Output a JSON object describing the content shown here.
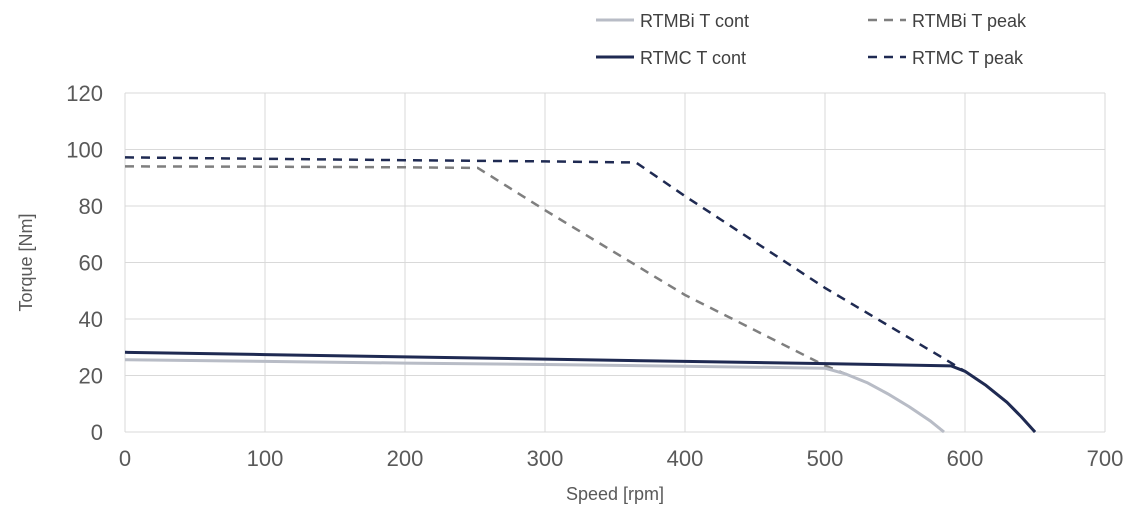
{
  "chart_data": {
    "type": "line",
    "title": "",
    "xlabel": "Speed [rpm]",
    "ylabel": "Torque [Nm]",
    "xlim": [
      0,
      700
    ],
    "ylim": [
      0,
      120
    ],
    "xticks": [
      0,
      100,
      200,
      300,
      400,
      500,
      600,
      700
    ],
    "yticks": [
      0,
      20,
      40,
      60,
      80,
      100,
      120
    ],
    "grid": "both",
    "legend_position": "top-right",
    "series": [
      {
        "name": "RTMBi T cont",
        "color": "#b8bcc6",
        "style": "solid",
        "x": [
          0,
          100,
          200,
          300,
          400,
          500,
          515,
          530,
          545,
          560,
          575,
          585
        ],
        "y": [
          25.6,
          25.0,
          24.4,
          23.9,
          23.3,
          22.6,
          20.5,
          17.5,
          13.5,
          9.0,
          4.0,
          0
        ]
      },
      {
        "name": "RTMBi T peak",
        "color": "#7f7f7f",
        "style": "dashed",
        "x": [
          0,
          100,
          200,
          252,
          300,
          400,
          500,
          515,
          530,
          545,
          560,
          575,
          585
        ],
        "y": [
          94,
          93.9,
          93.7,
          93.5,
          78.5,
          48.5,
          23.5,
          20.5,
          17.5,
          13.5,
          9.0,
          4.0,
          0
        ]
      },
      {
        "name": "RTMC T cont",
        "color": "#1f2a52",
        "style": "solid",
        "x": [
          0,
          100,
          200,
          300,
          400,
          500,
          590,
          600,
          615,
          630,
          640,
          650
        ],
        "y": [
          28.2,
          27.4,
          26.6,
          25.8,
          25.0,
          24.2,
          23.4,
          21.5,
          16.5,
          10.5,
          5.5,
          0
        ]
      },
      {
        "name": "RTMC T peak",
        "color": "#1f2a52",
        "style": "dashed",
        "x": [
          0,
          100,
          200,
          300,
          365,
          400,
          500,
          590,
          600,
          615,
          630,
          640,
          650
        ],
        "y": [
          97.2,
          96.7,
          96.2,
          95.8,
          95.4,
          83.5,
          51,
          24.5,
          21.5,
          16.5,
          10.5,
          5.5,
          0
        ]
      }
    ]
  }
}
